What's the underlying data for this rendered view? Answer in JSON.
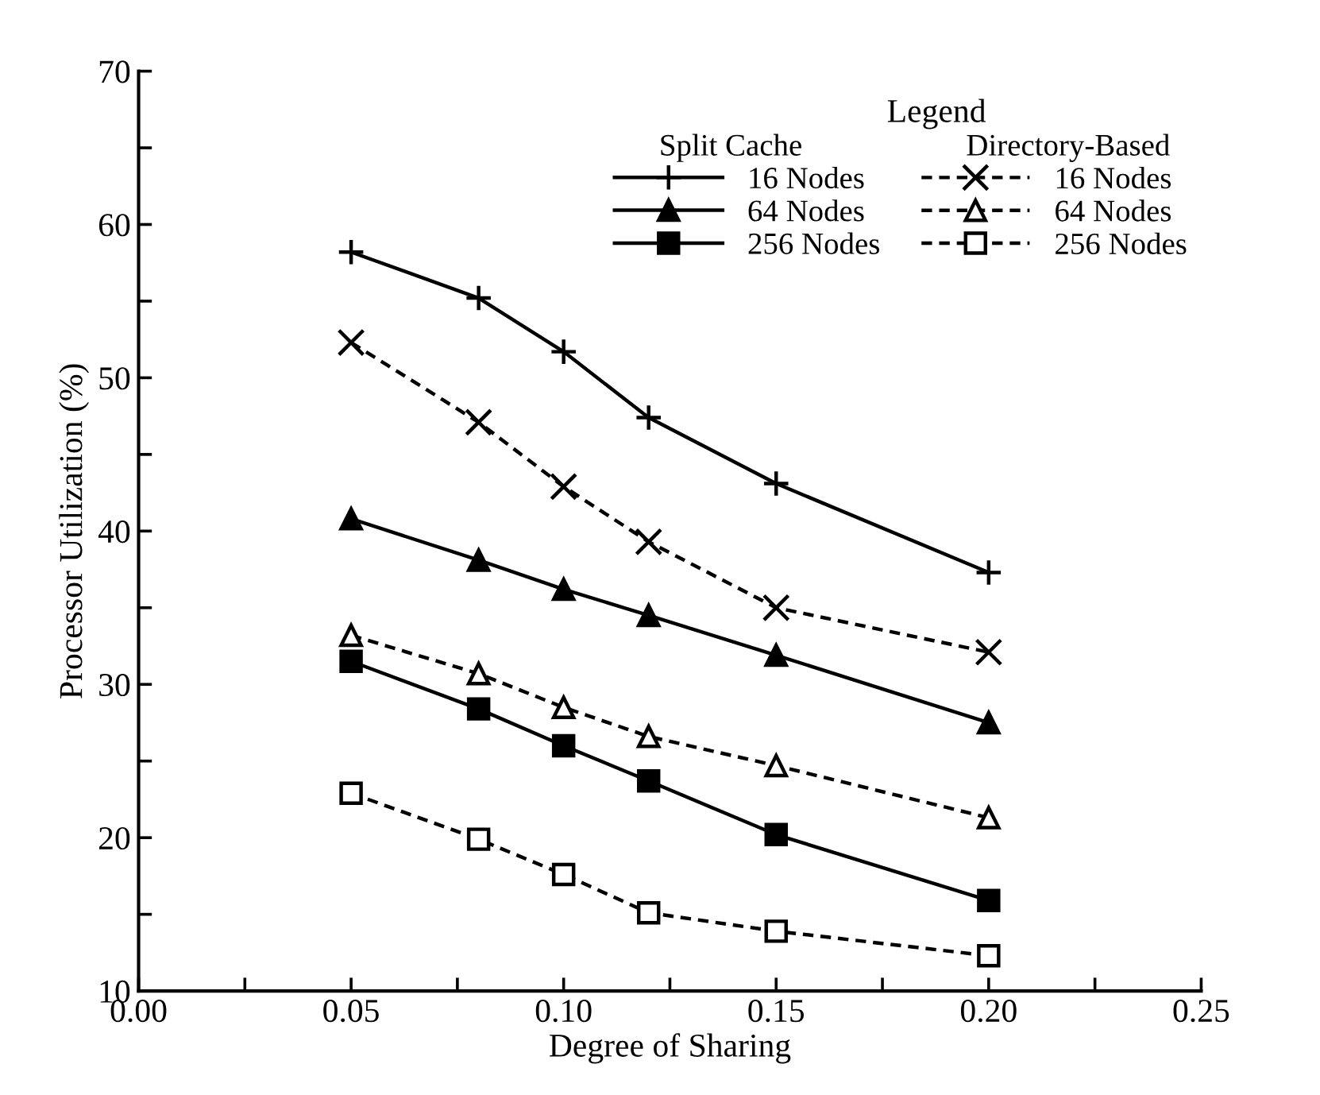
{
  "chart_data": {
    "type": "line",
    "xlabel": "Degree of Sharing",
    "ylabel": "Processor Utilization (%)",
    "x": [
      0.05,
      0.08,
      0.1,
      0.12,
      0.15,
      0.2
    ],
    "series": [
      {
        "name": "16 Nodes",
        "color": "#000000",
        "marker": "plus",
        "line_style": "solid",
        "values": [
          58.2,
          55.2,
          51.7,
          47.4,
          43.1,
          37.3
        ]
      },
      {
        "name": "64 Nodes",
        "color": "#000000",
        "marker": "triangle",
        "line_style": "solid",
        "values": [
          40.8,
          38.1,
          36.2,
          34.5,
          31.9,
          27.5
        ]
      },
      {
        "name": "256 Nodes",
        "color": "#000000",
        "marker": "square",
        "line_style": "solid",
        "values": [
          31.5,
          28.4,
          26.0,
          23.7,
          20.2,
          15.9
        ]
      },
      {
        "name": "16 Nodes",
        "color": "#000000",
        "marker": "cross",
        "line_style": "dashed",
        "values": [
          52.3,
          47.1,
          42.9,
          39.3,
          35.0,
          32.1
        ]
      },
      {
        "name": "64 Nodes",
        "color": "#000000",
        "marker": "triangle",
        "line_style": "dashed",
        "values": [
          33.2,
          30.7,
          28.5,
          26.6,
          24.7,
          21.3
        ]
      },
      {
        "name": "256 Nodes",
        "color": "#000000",
        "marker": "square",
        "line_style": "dashed",
        "values": [
          22.9,
          19.9,
          17.6,
          15.1,
          13.9,
          12.3
        ]
      }
    ],
    "legend_title": "Legend",
    "annotations": [
      "Split Cache",
      "Directory-Based"
    ],
    "legend": "top right",
    "xlim": [
      0,
      0.25
    ],
    "ylim": [
      10,
      70
    ],
    "xticks": [
      {
        "value": 0,
        "label": "0.00"
      },
      {
        "value": 0.025,
        "label": null
      },
      {
        "value": 0.05,
        "label": "0.05"
      },
      {
        "value": 0.075,
        "label": null
      },
      {
        "value": 0.1,
        "label": "0.10"
      },
      {
        "value": 0.125,
        "label": null
      },
      {
        "value": 0.15,
        "label": "0.15"
      },
      {
        "value": 0.175,
        "label": null
      },
      {
        "value": 0.2,
        "label": "0.20"
      },
      {
        "value": 0.225,
        "label": null
      },
      {
        "value": 0.25,
        "label": "0.25"
      }
    ],
    "yticks": [
      10,
      {
        "value": 15,
        "label": null
      },
      20,
      {
        "value": 25,
        "label": null
      },
      30,
      {
        "value": 35,
        "label": null
      },
      40,
      {
        "value": 45,
        "label": null
      },
      50,
      {
        "value": 55,
        "label": null
      },
      60,
      {
        "value": 65,
        "label": null
      },
      70
    ],
    "grid": false
  }
}
